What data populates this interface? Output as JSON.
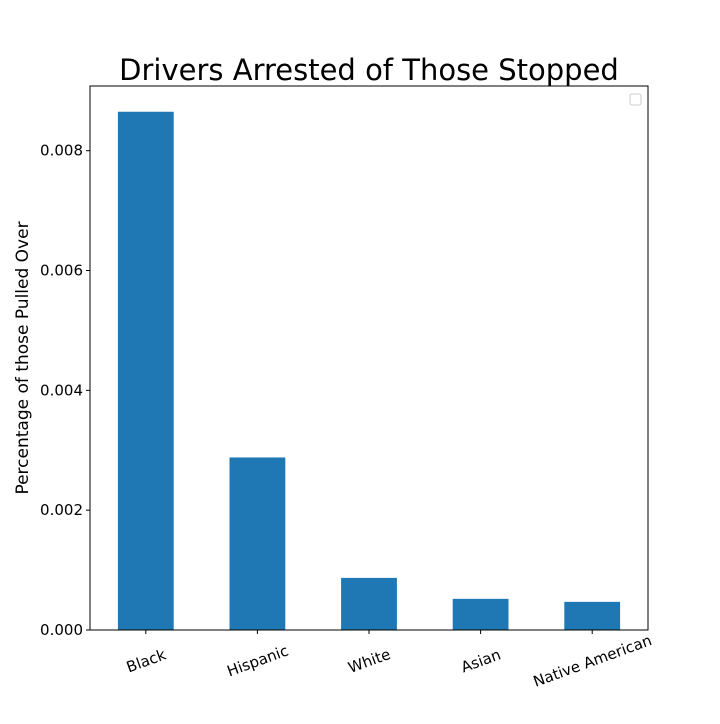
{
  "chart_data": {
    "type": "bar",
    "title": "Drivers Arrested of Those Stopped",
    "xlabel": "",
    "ylabel": "Percentage of those Pulled Over",
    "categories": [
      "Black",
      "Hispanic",
      "White",
      "Asian",
      "Native American"
    ],
    "values": [
      0.00865,
      0.00288,
      0.00087,
      0.00052,
      0.00047
    ],
    "ylim": [
      0,
      0.00908
    ],
    "yticks": [
      0.0,
      0.002,
      0.004,
      0.006,
      0.008
    ],
    "ytick_labels": [
      "0.000",
      "0.002",
      "0.004",
      "0.006",
      "0.008"
    ],
    "grid": false,
    "legend": {
      "placement": "top-right",
      "entries": []
    },
    "colors": {
      "bar": "#1f77b4",
      "axis": "#000000"
    }
  }
}
